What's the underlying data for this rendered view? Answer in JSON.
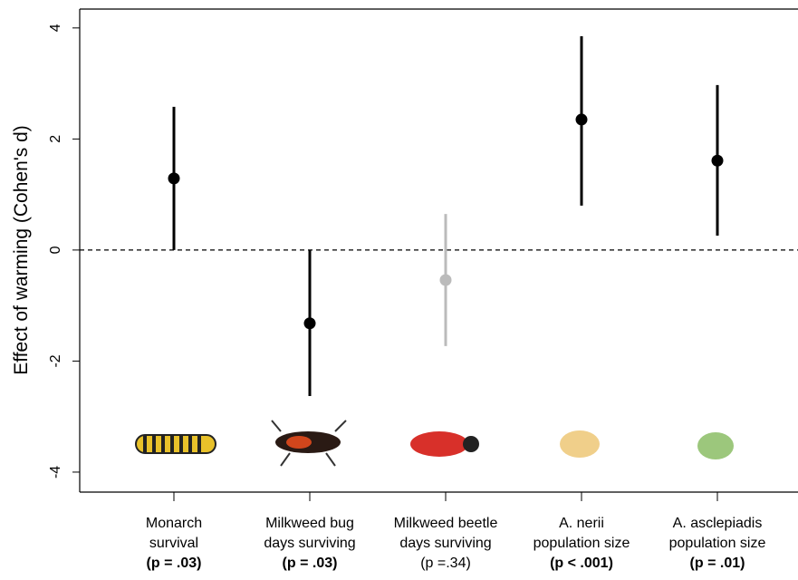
{
  "chart_data": {
    "type": "errorbar",
    "y_label": "Effect of warming (Cohen's d)",
    "categories": [
      [
        "Monarch",
        "survival"
      ],
      [
        "Milkweed bug",
        "days surviving"
      ],
      [
        "Milkweed beetle",
        "days surviving"
      ],
      [
        "A. nerii",
        "population size"
      ],
      [
        "A. asclepiadis",
        "population size"
      ]
    ],
    "p_labels": [
      "(p = .03)",
      "(p = .03)",
      "(p =.34)",
      "(p < .001)",
      "(p = .01)"
    ],
    "p_label_bold": [
      true,
      true,
      false,
      true,
      true
    ],
    "values": [
      1.29,
      -1.32,
      -0.54,
      2.35,
      1.61
    ],
    "ci_lower": [
      0,
      -2.63,
      -1.73,
      0.8,
      0.26
    ],
    "ci_upper": [
      2.58,
      0,
      0.65,
      3.85,
      2.97
    ],
    "colors": [
      "#000000",
      "#000000",
      "#bbbbbb",
      "#000000",
      "#000000"
    ],
    "hline": 0,
    "ylim": [
      -4.36,
      4.34
    ],
    "yticks": [
      -4,
      -2,
      0,
      2,
      4
    ]
  }
}
